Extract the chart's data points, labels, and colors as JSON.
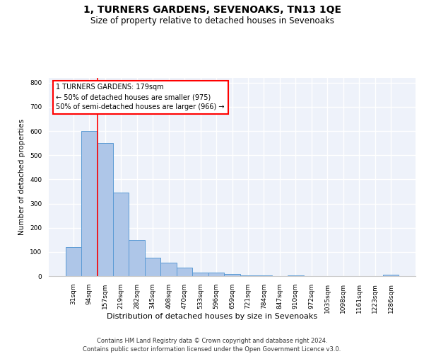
{
  "title": "1, TURNERS GARDENS, SEVENOAKS, TN13 1QE",
  "subtitle": "Size of property relative to detached houses in Sevenoaks",
  "xlabel": "Distribution of detached houses by size in Sevenoaks",
  "ylabel": "Number of detached properties",
  "categories": [
    "31sqm",
    "94sqm",
    "157sqm",
    "219sqm",
    "282sqm",
    "345sqm",
    "408sqm",
    "470sqm",
    "533sqm",
    "596sqm",
    "659sqm",
    "721sqm",
    "784sqm",
    "847sqm",
    "910sqm",
    "972sqm",
    "1035sqm",
    "1098sqm",
    "1161sqm",
    "1223sqm",
    "1286sqm"
  ],
  "values": [
    120,
    600,
    550,
    345,
    150,
    75,
    55,
    35,
    15,
    15,
    10,
    3,
    3,
    0,
    2,
    0,
    0,
    0,
    0,
    0,
    5
  ],
  "bar_color": "#aec6e8",
  "bar_edge_color": "#5b9bd5",
  "background_color": "#eef2fa",
  "grid_color": "#ffffff",
  "vline_color": "red",
  "annotation_text": "1 TURNERS GARDENS: 179sqm\n← 50% of detached houses are smaller (975)\n50% of semi-detached houses are larger (966) →",
  "annotation_box_color": "red",
  "ylim": [
    0,
    820
  ],
  "footer1": "Contains HM Land Registry data © Crown copyright and database right 2024.",
  "footer2": "Contains public sector information licensed under the Open Government Licence v3.0.",
  "title_fontsize": 10,
  "subtitle_fontsize": 8.5,
  "xlabel_fontsize": 8,
  "ylabel_fontsize": 7.5,
  "tick_fontsize": 6.5,
  "annotation_fontsize": 7,
  "footer_fontsize": 6
}
